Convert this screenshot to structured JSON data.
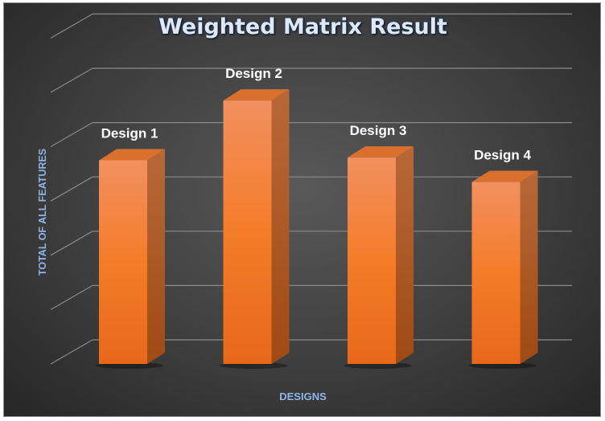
{
  "chart_data": {
    "type": "bar",
    "title": "Weighted Matrix Result",
    "xlabel": "DESIGNS",
    "ylabel": "TOTAL OF ALL FEATURES",
    "categories": [
      "Design 1",
      "Design 2",
      "Design 3",
      "Design 4"
    ],
    "series": [
      {
        "values": [
          3.75,
          4.85,
          3.8,
          3.35
        ]
      }
    ],
    "data_labels": [
      "Design 1",
      "Design 2",
      "Design 3",
      "Design 4"
    ],
    "ylim": [
      0,
      6
    ],
    "grid": true,
    "three_d": true,
    "legend": "none",
    "colors": {
      "bar_front": "#f57f2a",
      "bar_side": "#b55318",
      "bar_top": "#d9702e",
      "gridline": "#8a8a8a",
      "label": "#ffffff",
      "axis_title": "#8fb5e6",
      "title": "#dfe8f5"
    }
  }
}
